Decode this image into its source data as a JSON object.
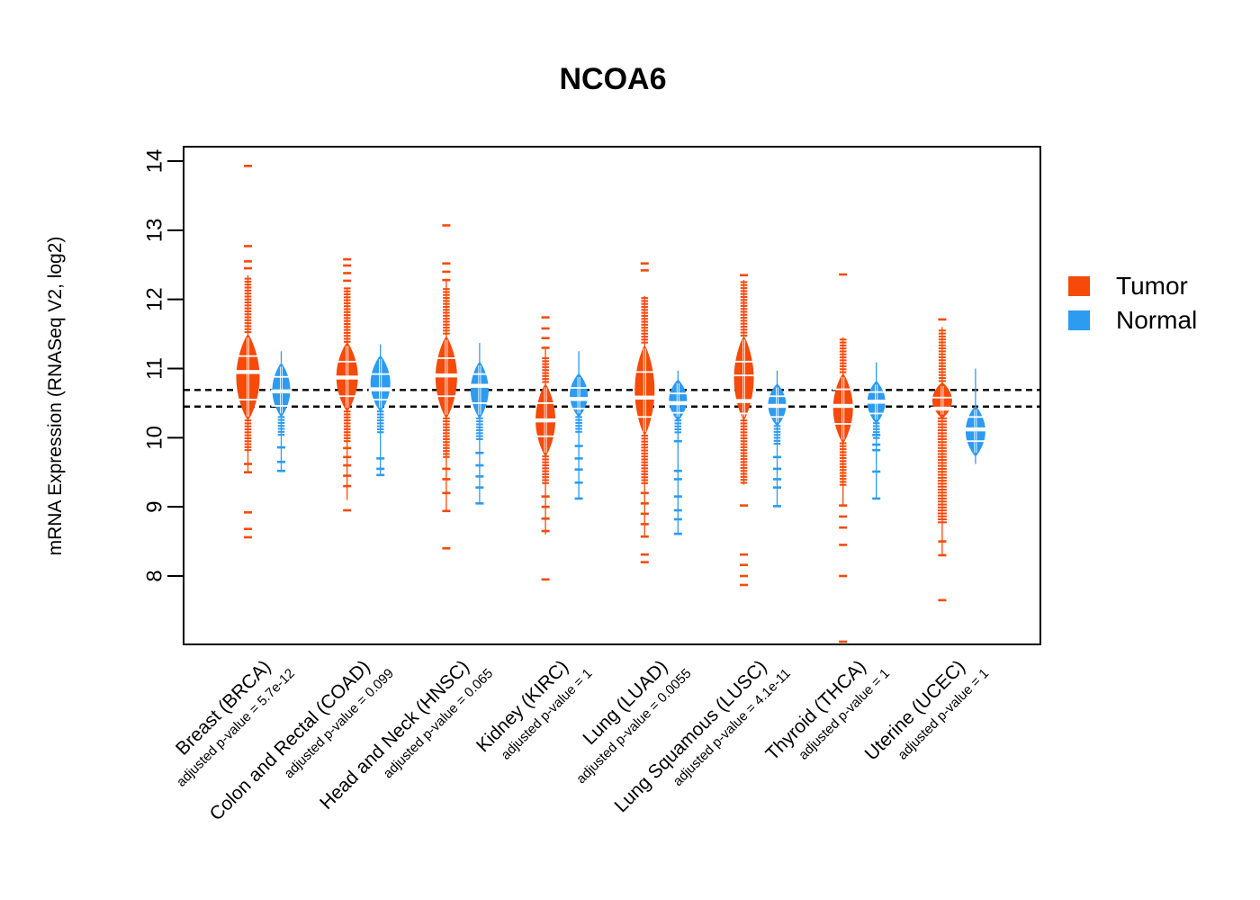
{
  "page": {
    "background": "#ffffff"
  },
  "chart_data": {
    "type": "violin",
    "title": "NCOA6",
    "ylabel": "mRNA Expression (RNASeq V2, log2)",
    "xlabel": "",
    "yticks": [
      8,
      9,
      10,
      11,
      12,
      13,
      14
    ],
    "ylim": [
      7.0,
      14.2
    ],
    "grid": false,
    "colors": {
      "tumor": "#F54A0A",
      "normal": "#2D9BF0"
    },
    "legend": {
      "position": "right",
      "items": [
        {
          "key": "tumor",
          "label": "Tumor",
          "color": "#F54A0A"
        },
        {
          "key": "normal",
          "label": "Normal",
          "color": "#2D9BF0"
        }
      ]
    },
    "reference_lines": {
      "values": [
        10.69,
        10.45
      ],
      "style": "dashed",
      "color": "#000000"
    },
    "groups": [
      {
        "label": "Breast (BRCA)",
        "pvalue_label": "adjusted p-value = 5.7e-12",
        "tumor": {
          "median": 10.95,
          "body": [
            10.25,
            11.5
          ],
          "halfwidth": 13,
          "spine": [
            9.5,
            12.35
          ],
          "stacks": [
            [
              11.5,
              12.3
            ],
            [
              9.8,
              10.25
            ]
          ],
          "gaps": [
            10.55,
            11.18
          ],
          "outliers": [
            13.93,
            12.77,
            12.55,
            12.45,
            9.62,
            9.5,
            8.92,
            8.68,
            8.56
          ]
        },
        "normal": {
          "median": 10.67,
          "body": [
            10.3,
            11.08
          ],
          "halfwidth": 10,
          "spine": [
            9.5,
            11.25
          ],
          "stacks": [
            [
              10.02,
              10.3
            ]
          ],
          "gaps": [
            10.46,
            10.88
          ],
          "outliers": [
            9.86,
            9.65,
            9.52
          ]
        }
      },
      {
        "label": "Colon and Rectal (COAD)",
        "pvalue_label": "adjusted p-value = 0.099",
        "tumor": {
          "median": 10.87,
          "body": [
            10.38,
            11.38
          ],
          "halfwidth": 12,
          "spine": [
            9.1,
            12.16
          ],
          "stacks": [
            [
              11.38,
              12.16
            ],
            [
              9.95,
              10.38
            ]
          ],
          "gaps": [
            10.6,
            11.1
          ],
          "outliers": [
            12.58,
            12.49,
            12.38,
            12.27,
            9.85,
            9.72,
            9.6,
            9.45,
            9.3,
            8.95
          ]
        },
        "normal": {
          "median": 10.7,
          "body": [
            10.38,
            11.19
          ],
          "halfwidth": 11,
          "spine": [
            9.46,
            11.35
          ],
          "stacks": [
            [
              10.04,
              10.38
            ]
          ],
          "gaps": [
            10.55,
            10.92
          ],
          "outliers": [
            9.7,
            9.55,
            9.46
          ]
        }
      },
      {
        "label": "Head and Neck (HNSC)",
        "pvalue_label": "adjusted p-value = 0.065",
        "tumor": {
          "median": 10.9,
          "body": [
            10.28,
            11.47
          ],
          "halfwidth": 12,
          "spine": [
            8.95,
            12.3
          ],
          "stacks": [
            [
              11.47,
              12.15
            ],
            [
              9.72,
              10.28
            ]
          ],
          "gaps": [
            10.6,
            11.15
          ],
          "outliers": [
            13.07,
            12.52,
            12.4,
            12.28,
            9.55,
            9.4,
            9.2,
            8.94,
            8.4
          ]
        },
        "normal": {
          "median": 10.75,
          "body": [
            10.28,
            11.1
          ],
          "halfwidth": 10,
          "spine": [
            9.05,
            11.37
          ],
          "stacks": [
            [
              9.95,
              10.28
            ]
          ],
          "gaps": [
            10.5,
            10.92
          ],
          "outliers": [
            9.78,
            9.6,
            9.44,
            9.28,
            9.05
          ]
        }
      },
      {
        "label": "Kidney (KIRC)",
        "pvalue_label": "adjusted p-value = 1",
        "tumor": {
          "median": 10.25,
          "body": [
            9.73,
            10.78
          ],
          "halfwidth": 11,
          "spine": [
            8.6,
            11.3
          ],
          "stacks": [
            [
              10.78,
              11.15
            ],
            [
              9.32,
              9.73
            ]
          ],
          "gaps": [
            10.02,
            10.5
          ],
          "outliers": [
            11.74,
            11.58,
            11.44,
            11.3,
            9.15,
            9.0,
            8.83,
            8.65,
            7.95
          ]
        },
        "normal": {
          "median": 10.56,
          "body": [
            10.3,
            10.93
          ],
          "halfwidth": 10,
          "spine": [
            9.12,
            11.25
          ],
          "stacks": [
            [
              10.05,
              10.3
            ]
          ],
          "gaps": [
            10.42,
            10.72
          ],
          "outliers": [
            9.88,
            9.7,
            9.54,
            9.35,
            9.12
          ]
        }
      },
      {
        "label": "Lung (LUAD)",
        "pvalue_label": "adjusted p-value = 0.0055",
        "tumor": {
          "median": 10.58,
          "body": [
            10.03,
            11.34
          ],
          "halfwidth": 11,
          "spine": [
            8.57,
            12.05
          ],
          "stacks": [
            [
              11.34,
              12.02
            ],
            [
              9.3,
              10.03
            ]
          ],
          "gaps": [
            10.3,
            10.95
          ],
          "outliers": [
            12.52,
            12.42,
            9.2,
            9.05,
            8.9,
            8.75,
            8.57,
            8.31,
            8.2
          ]
        },
        "normal": {
          "median": 10.5,
          "body": [
            10.25,
            10.84
          ],
          "halfwidth": 10,
          "spine": [
            8.61,
            10.97
          ],
          "stacks": [
            [
              10.05,
              10.25
            ]
          ],
          "gaps": [
            10.36,
            10.64
          ],
          "outliers": [
            9.95,
            9.52,
            9.4,
            9.15,
            8.95,
            8.82,
            8.61
          ]
        }
      },
      {
        "label": "Lung Squamous (LUSC)",
        "pvalue_label": "adjusted p-value = 4.1e-11",
        "tumor": {
          "median": 10.53,
          "body": [
            10.25,
            11.47
          ],
          "halfwidth": 11,
          "spine": [
            9.32,
            12.28
          ],
          "stacks": [
            [
              11.47,
              12.25
            ],
            [
              9.32,
              10.25
            ]
          ],
          "gaps": [
            10.35,
            10.9,
            11.1
          ],
          "outliers": [
            12.35,
            9.02,
            8.31,
            8.16,
            8.0,
            7.87
          ]
        },
        "normal": {
          "median": 10.46,
          "body": [
            10.17,
            10.78
          ],
          "halfwidth": 10,
          "spine": [
            9.01,
            10.97
          ],
          "stacks": [
            [
              9.9,
              10.17
            ]
          ],
          "gaps": [
            10.3,
            10.6
          ],
          "outliers": [
            9.72,
            9.55,
            9.4,
            9.28,
            9.01
          ]
        }
      },
      {
        "label": "Thyroid (THCA)",
        "pvalue_label": "adjusted p-value = 1",
        "tumor": {
          "median": 10.46,
          "body": [
            9.92,
            10.93
          ],
          "halfwidth": 11,
          "spine": [
            9.0,
            11.45
          ],
          "stacks": [
            [
              10.93,
              11.42
            ],
            [
              9.3,
              9.92
            ]
          ],
          "gaps": [
            10.2,
            10.7
          ],
          "outliers": [
            12.36,
            9.02,
            8.86,
            8.7,
            8.45,
            8.0,
            7.05
          ]
        },
        "normal": {
          "median": 10.52,
          "body": [
            10.21,
            10.82
          ],
          "halfwidth": 10,
          "spine": [
            9.12,
            11.09
          ],
          "stacks": [
            [
              9.98,
              10.21
            ]
          ],
          "gaps": [
            10.35,
            10.66
          ],
          "outliers": [
            10.04,
            9.9,
            9.82,
            9.51,
            9.12
          ]
        }
      },
      {
        "label": "Uterine (UCEC)",
        "pvalue_label": "adjusted p-value = 1",
        "tumor": {
          "median": 10.42,
          "body": [
            10.28,
            10.8
          ],
          "halfwidth": 11,
          "spine": [
            8.3,
            11.6
          ],
          "stacks": [
            [
              10.8,
              11.55,
              4
            ],
            [
              8.74,
              10.28,
              5
            ]
          ],
          "gaps": [
            10.58
          ],
          "outliers": [
            11.71,
            8.5,
            8.3,
            7.65
          ]
        },
        "normal": {
          "median": 10.12,
          "body": [
            9.73,
            10.46
          ],
          "halfwidth": 11,
          "spine": [
            9.62,
            11.0
          ],
          "stacks": [],
          "gaps": [
            9.95,
            10.3
          ],
          "outliers": []
        }
      }
    ]
  }
}
